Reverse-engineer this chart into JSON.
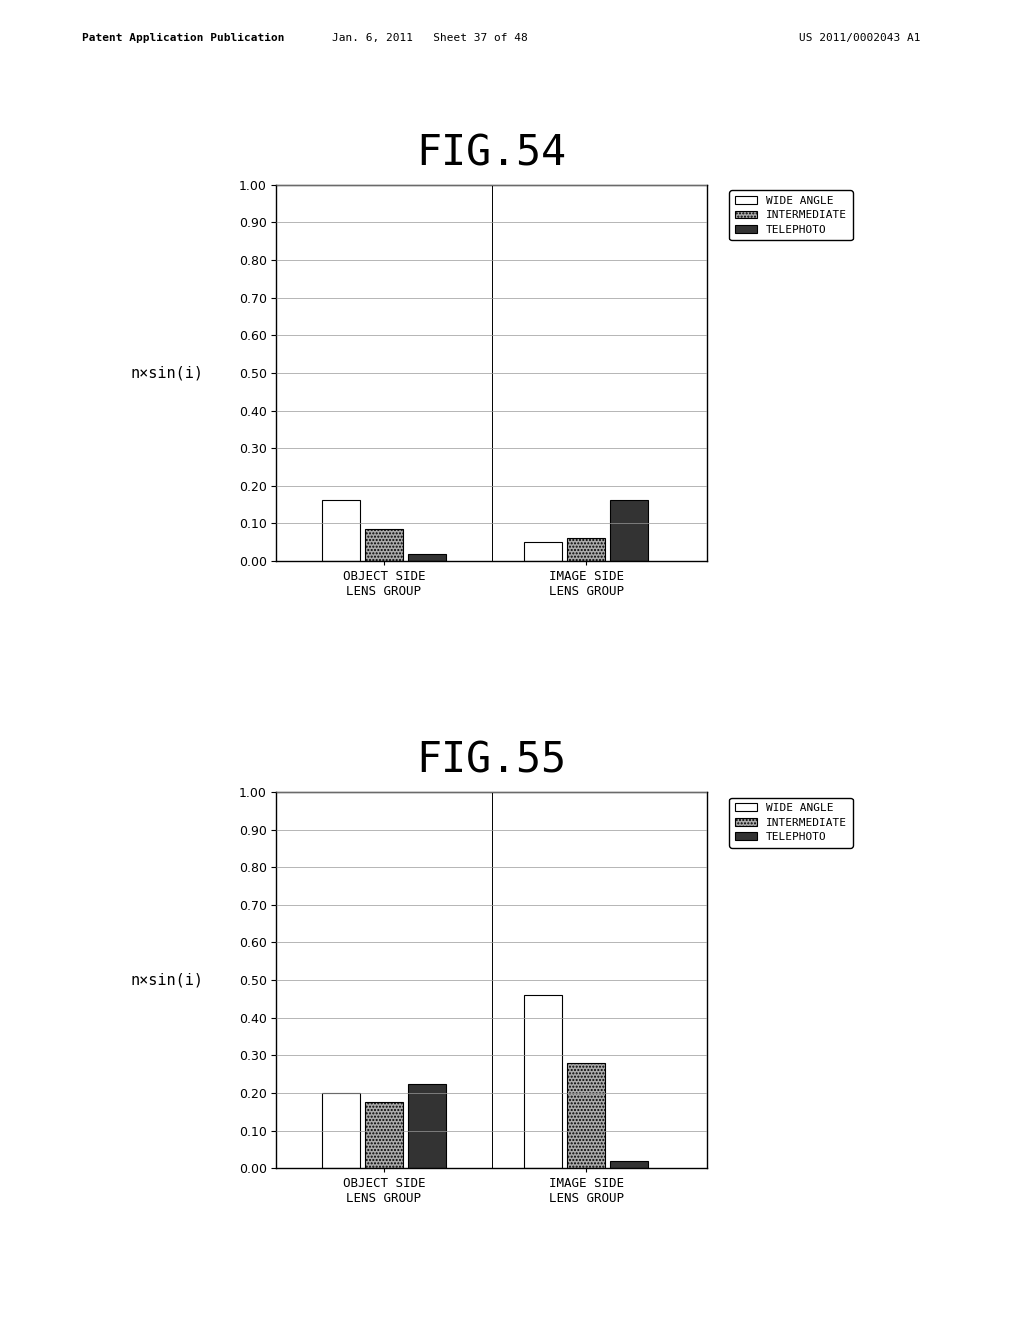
{
  "fig54_title": "FIG.54",
  "fig55_title": "FIG.55",
  "ylabel": "n×sin(i)",
  "xlabel_groups": [
    "OBJECT SIDE\nLENS GROUP",
    "IMAGE SIDE\nLENS GROUP"
  ],
  "legend_labels": [
    "WIDE ANGLE",
    "INTERMEDIATE",
    "TELEPHOTO"
  ],
  "fig54_data": {
    "object_side": [
      0.162,
      0.085,
      0.018
    ],
    "image_side": [
      0.05,
      0.06,
      0.162
    ]
  },
  "fig55_data": {
    "object_side": [
      0.2,
      0.175,
      0.225
    ],
    "image_side": [
      0.46,
      0.28,
      0.018
    ]
  },
  "ylim": [
    0.0,
    1.0
  ],
  "yticks": [
    0.0,
    0.1,
    0.2,
    0.3,
    0.4,
    0.5,
    0.6,
    0.7,
    0.8,
    0.9,
    1.0
  ],
  "bar_colors": [
    "#ffffff",
    "#aaaaaa",
    "#333333"
  ],
  "bar_hatches": [
    null,
    ".....",
    null
  ],
  "bar_edgecolor": "#000000",
  "background_color": "#ffffff",
  "header_left": "Patent Application Publication",
  "header_mid": "Jan. 6, 2011   Sheet 37 of 48",
  "header_right": "US 2011/0002043 A1",
  "title_fontsize": 30,
  "axis_fontsize": 9,
  "legend_fontsize": 8,
  "ylabel_fontsize": 11,
  "tick_label_fontsize": 9
}
